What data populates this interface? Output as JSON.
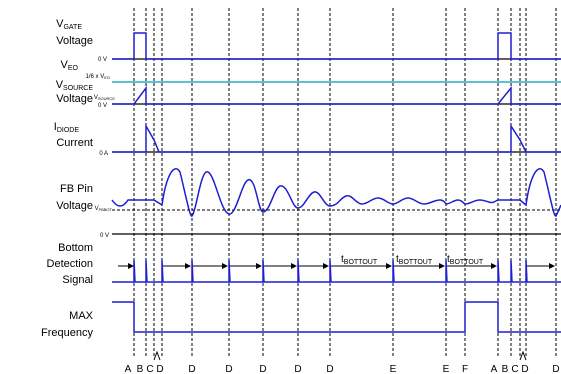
{
  "signals": {
    "vgate": {
      "main": "V",
      "sub": "GATE",
      "line2": "Voltage",
      "zero": "0 V"
    },
    "veo": {
      "main": "V",
      "sub": "EO",
      "ref_pre": "1/6 x V",
      "ref_sub": "EO"
    },
    "vsource": {
      "main": "V",
      "sub": "SOURCE",
      "line2": "Voltage",
      "ref_pre": "V",
      "ref_sub": "SOURCE",
      "zero": "0 V"
    },
    "idiode": {
      "main": "I",
      "sub": "DIODE",
      "line2": "Current",
      "zero": "0 A"
    },
    "fb": {
      "line1": "FB Pin",
      "line2": "Voltage",
      "ref_pre": "V",
      "ref_sub": "FBBOT",
      "zero": "0 V"
    },
    "detect": {
      "line1": "Bottom",
      "line2": "Detection",
      "line3": "Signal",
      "tout_pre": "t",
      "tout_sub": "BOTTOUT"
    },
    "maxfreq": {
      "line1": "MAX",
      "line2": "Frequency"
    }
  },
  "markers": [
    "A",
    "B",
    "C",
    "D",
    "D",
    "D",
    "D",
    "D",
    "D",
    "E",
    "E",
    "F",
    "A",
    "B",
    "C",
    "D",
    "D"
  ],
  "colors": {
    "trace": "#1f1fd0",
    "reference": "#20b0c8",
    "axis": "#000000"
  }
}
